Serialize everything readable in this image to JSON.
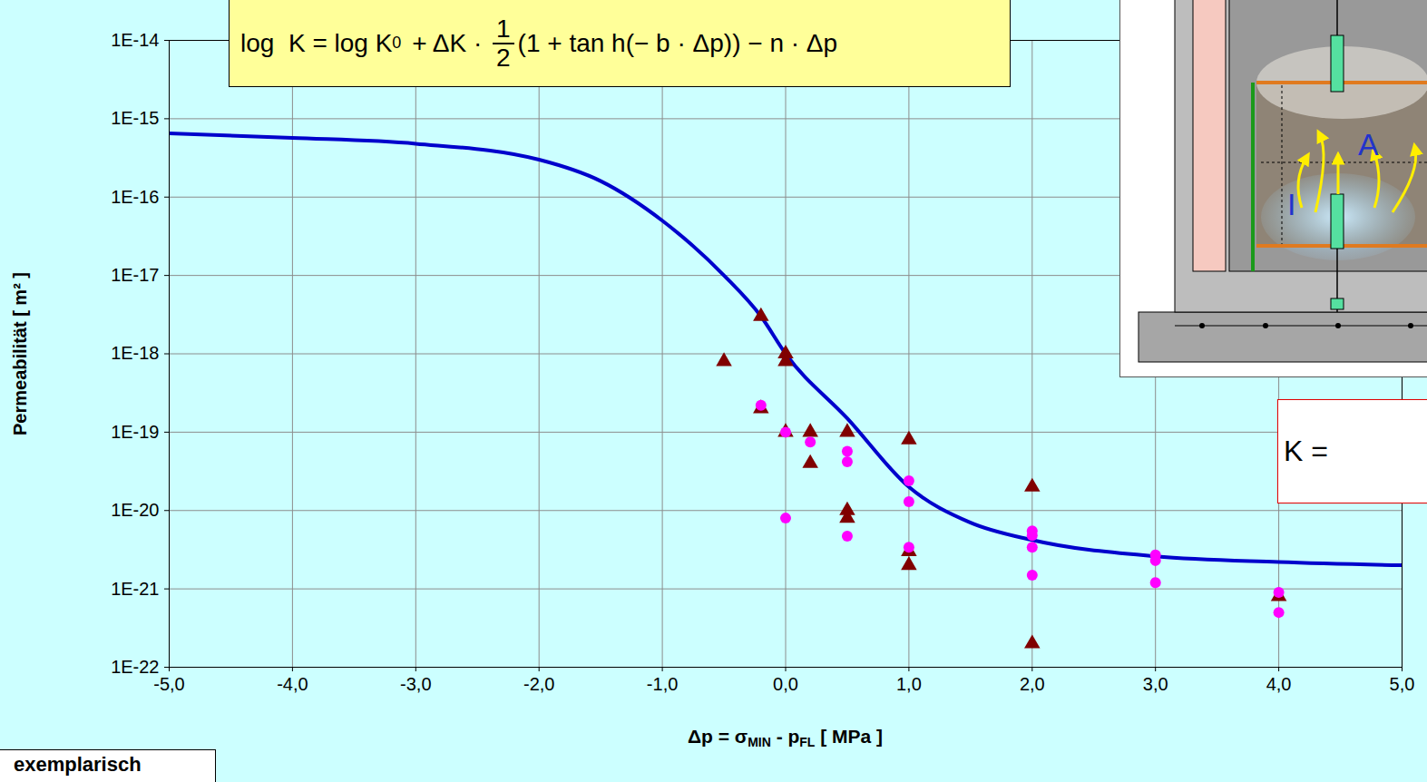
{
  "chart_data": {
    "type": "scatter",
    "log": "y",
    "grid": true,
    "x_label": [
      {
        "text": "Δp = σ"
      },
      {
        "text": "MIN",
        "sub": true
      },
      {
        "text": " - p"
      },
      {
        "text": "FL",
        "sub": true
      },
      {
        "text": " [ MPa ]"
      }
    ],
    "y_label": "Permeabilität [ m² ]",
    "xlim": [
      -5,
      5
    ],
    "ylim": [
      1e-22,
      1e-14
    ],
    "xticks": [
      {
        "value": -5,
        "label": "-5,0"
      },
      {
        "value": -4,
        "label": "-4,0"
      },
      {
        "value": -3,
        "label": "-3,0"
      },
      {
        "value": -2,
        "label": "-2,0"
      },
      {
        "value": -1,
        "label": "-1,0"
      },
      {
        "value": 0,
        "label": "0,0"
      },
      {
        "value": 1,
        "label": "1,0"
      },
      {
        "value": 2,
        "label": "2,0"
      },
      {
        "value": 3,
        "label": "3,0"
      },
      {
        "value": 4,
        "label": "4,0"
      },
      {
        "value": 5,
        "label": "5,0"
      }
    ],
    "yticks": [
      {
        "value": 1e-22,
        "label": "1E-22"
      },
      {
        "value": 1e-21,
        "label": "1E-21"
      },
      {
        "value": 1e-20,
        "label": "1E-20"
      },
      {
        "value": 1e-19,
        "label": "1E-19"
      },
      {
        "value": 1e-18,
        "label": "1E-18"
      },
      {
        "value": 1e-17,
        "label": "1E-17"
      },
      {
        "value": 1e-16,
        "label": "1E-16"
      },
      {
        "value": 1e-15,
        "label": "1E-15"
      },
      {
        "value": 1e-14,
        "label": "1E-14"
      }
    ],
    "series": [
      {
        "type": "line",
        "color": "#0000cc",
        "line_style": "solid",
        "x": [
          -5,
          -4,
          -3,
          -2,
          -1.5,
          -1,
          -0.5,
          -0.2,
          0,
          0.5,
          1,
          1.5,
          2,
          3,
          4,
          5
        ],
        "values": [
          6.5e-16,
          5.7e-16,
          4.8e-16,
          3e-16,
          1.6e-16,
          5e-17,
          1e-17,
          3e-18,
          1e-18,
          1.5e-19,
          2e-20,
          7e-21,
          4.2e-21,
          2.6e-21,
          2.2e-21,
          2e-21
        ]
      },
      {
        "type": "scatter",
        "color": "#800000",
        "marker": "triangle",
        "x": [
          -0.2,
          -0.5,
          0,
          0,
          -0.2,
          0,
          0.2,
          0.2,
          0.5,
          0.5,
          0.5,
          1,
          1,
          1,
          2,
          2,
          4
        ],
        "values": [
          3e-18,
          8e-19,
          1e-18,
          8e-19,
          2e-19,
          1e-19,
          1e-19,
          4e-20,
          1e-19,
          1e-20,
          8e-21,
          8e-20,
          3e-21,
          2e-21,
          2e-20,
          2e-22,
          8e-22
        ]
      },
      {
        "type": "scatter",
        "color": "#ff00ff",
        "marker": "circle",
        "x": [
          -0.2,
          0,
          0,
          0.2,
          0.5,
          0.5,
          0.5,
          1,
          1,
          1,
          2,
          2,
          2,
          2,
          3,
          3,
          3,
          4,
          4
        ],
        "values": [
          2.2e-19,
          1e-19,
          8e-21,
          7.5e-20,
          5.7e-20,
          4.2e-20,
          4.7e-21,
          2.4e-20,
          1.3e-20,
          3.4e-21,
          5.5e-21,
          4.8e-21,
          3.4e-21,
          1.5e-21,
          2.7e-21,
          2.3e-21,
          1.2e-21,
          9e-22,
          5e-22
        ]
      }
    ],
    "annotations": {
      "formula": {
        "lhs": "log  K = log K",
        "sub": "0",
        "mid": " + ΔK · ",
        "numerator": "1",
        "denominator": "2",
        "rest": "(1 + tan h(− b · Δp)) − n · Δp"
      },
      "note": "exemplarisch",
      "box_text": "K =",
      "inset_labels": [
        "A",
        "I"
      ]
    }
  }
}
